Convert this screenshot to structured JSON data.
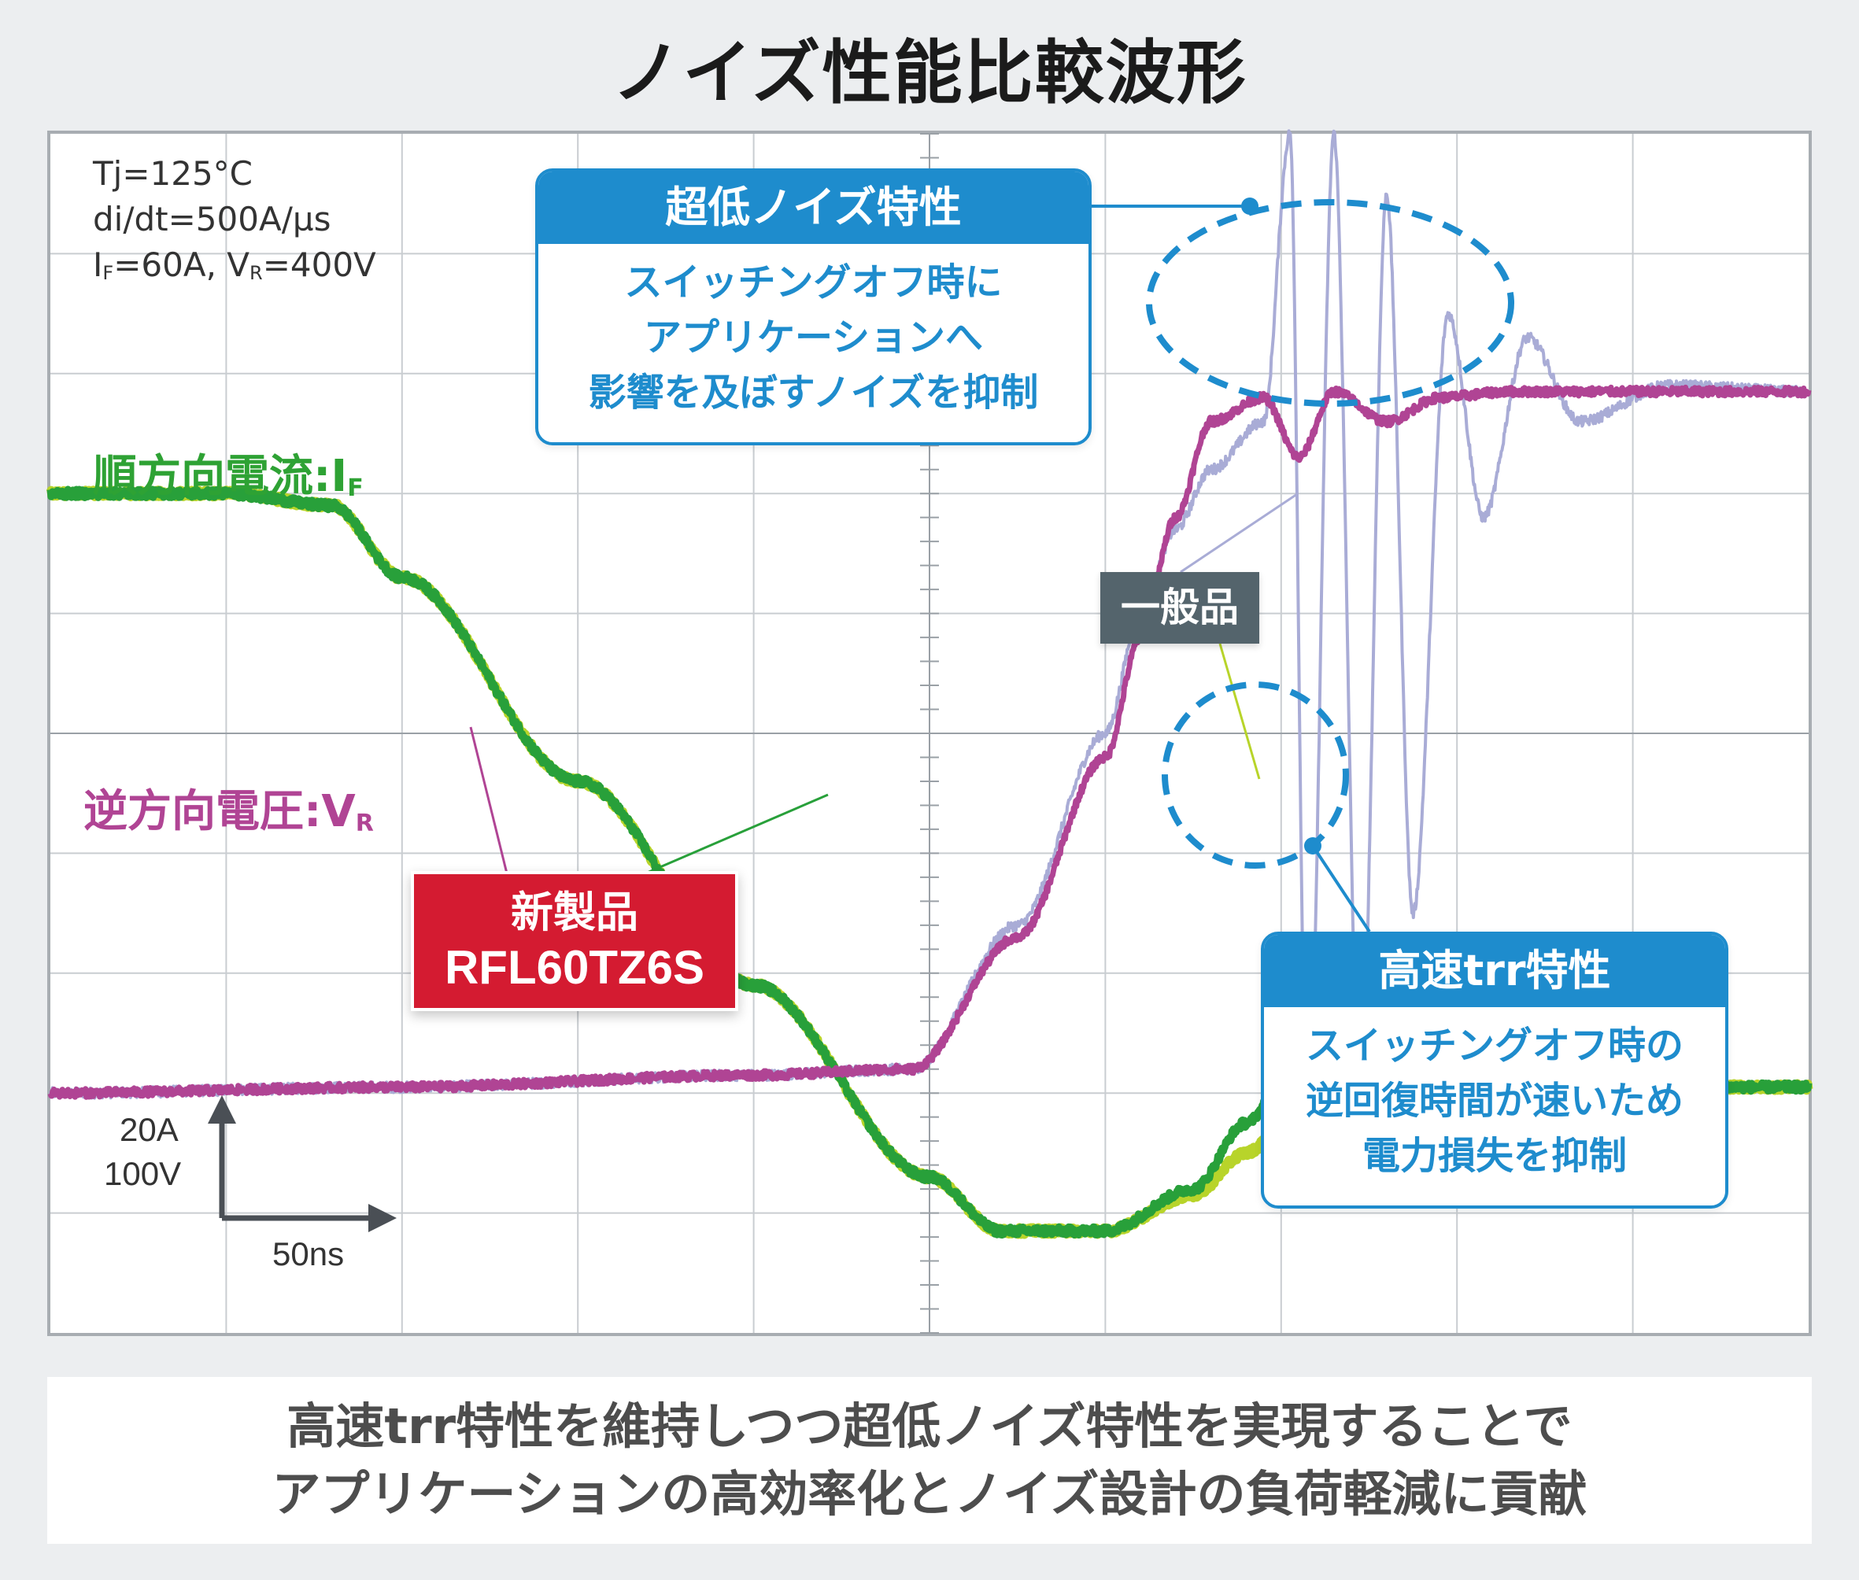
{
  "title": "ノイズ性能比較波形",
  "conditions": {
    "line1": "Tj=125°C",
    "line2": "di/dt=500A/µs",
    "line3_a": "I",
    "line3_a_sub": "F",
    "line3_b": "=60A, V",
    "line3_b_sub": "R",
    "line3_c": "=400V"
  },
  "labels": {
    "forward_current": "順方向電流:I",
    "forward_current_sub": "F",
    "reverse_voltage": "逆方向電圧:V",
    "reverse_voltage_sub": "R"
  },
  "callout_noise": {
    "heading": "超低ノイズ特性",
    "line1": "スイッチングオフ時に",
    "line2": "アプリケーションへ",
    "line3": "影響を及ぼすノイズを抑制"
  },
  "callout_trr": {
    "heading": "高速trr特性",
    "line1": "スイッチングオフ時の",
    "line2": "逆回復時間が速いため",
    "line3": "電力損失を抑制"
  },
  "tag_general": "一般品",
  "tag_new": {
    "line1": "新製品",
    "line2": "RFL60TZ6S"
  },
  "scale": {
    "y1": "20A",
    "y2": "100V",
    "x": "50ns"
  },
  "footer": {
    "line1": "高速trr特性を維持しつつ超低ノイズ特性を実現することで",
    "line2": "アプリケーションの高効率化とノイズ設計の負荷軽減に貢献"
  },
  "colors": {
    "new_current": "#28a03a",
    "general_current": "#b8d42a",
    "new_voltage": "#b04494",
    "general_voltage": "#a9acd6",
    "callout": "#1e8ccd",
    "new_tag": "#d41b31",
    "general_tag": "#54646c"
  },
  "chart_data": {
    "type": "line",
    "grid": true,
    "x_divisions": 10,
    "y_divisions": 10,
    "x_per_division_ns": 50,
    "y_per_division": [
      "20A",
      "100V"
    ],
    "series": [
      {
        "name": "順方向電流:IF 新製品",
        "x_div": [
          0,
          1,
          1.6,
          2,
          3,
          4,
          5,
          5.4,
          6,
          6.5,
          6.8,
          7.05,
          7.3,
          8,
          9,
          10
        ],
        "y_div": [
          7.0,
          7.0,
          6.9,
          6.3,
          4.6,
          2.9,
          1.3,
          0.85,
          0.85,
          1.2,
          1.75,
          2.18,
          2.15,
          2.05,
          2.05,
          2.05
        ]
      },
      {
        "name": "順方向電流:IF 一般品",
        "x_div": [
          0,
          1,
          1.6,
          2,
          3,
          4,
          5,
          5.4,
          6,
          6.5,
          6.8,
          7.0,
          7.2,
          7.4,
          8,
          9,
          10
        ],
        "y_div": [
          7.0,
          7.0,
          6.9,
          6.3,
          4.6,
          2.9,
          1.3,
          0.85,
          0.85,
          1.15,
          1.5,
          1.7,
          2.0,
          2.2,
          2.1,
          2.05,
          2.05
        ]
      },
      {
        "name": "逆方向電圧:VR 新製品",
        "x_div": [
          0,
          2,
          4,
          4.9,
          5.5,
          6,
          6.2,
          6.4,
          6.6,
          6.9,
          7.1,
          7.3,
          7.6,
          7.9,
          8.3,
          8.8,
          9.3,
          10
        ],
        "y_div": [
          2.0,
          2.05,
          2.15,
          2.2,
          3.3,
          4.8,
          5.8,
          6.8,
          7.6,
          7.8,
          7.3,
          7.85,
          7.6,
          7.8,
          7.85,
          7.85,
          7.85,
          7.85
        ]
      },
      {
        "name": "逆方向電圧:VR 一般品",
        "x_div": [
          0,
          2,
          4,
          4.9,
          5.5,
          6,
          6.2,
          6.4,
          6.6,
          6.9,
          7.05,
          7.15,
          7.3,
          7.45,
          7.6,
          7.75,
          7.95,
          8.15,
          8.4,
          8.7,
          9.2,
          10
        ],
        "y_div": [
          2.0,
          2.05,
          2.15,
          2.2,
          3.4,
          5.0,
          6.0,
          6.7,
          7.2,
          7.6,
          10.0,
          1.5,
          10.0,
          1.9,
          9.5,
          3.5,
          8.5,
          6.8,
          8.3,
          7.6,
          7.9,
          7.85
        ]
      }
    ]
  }
}
